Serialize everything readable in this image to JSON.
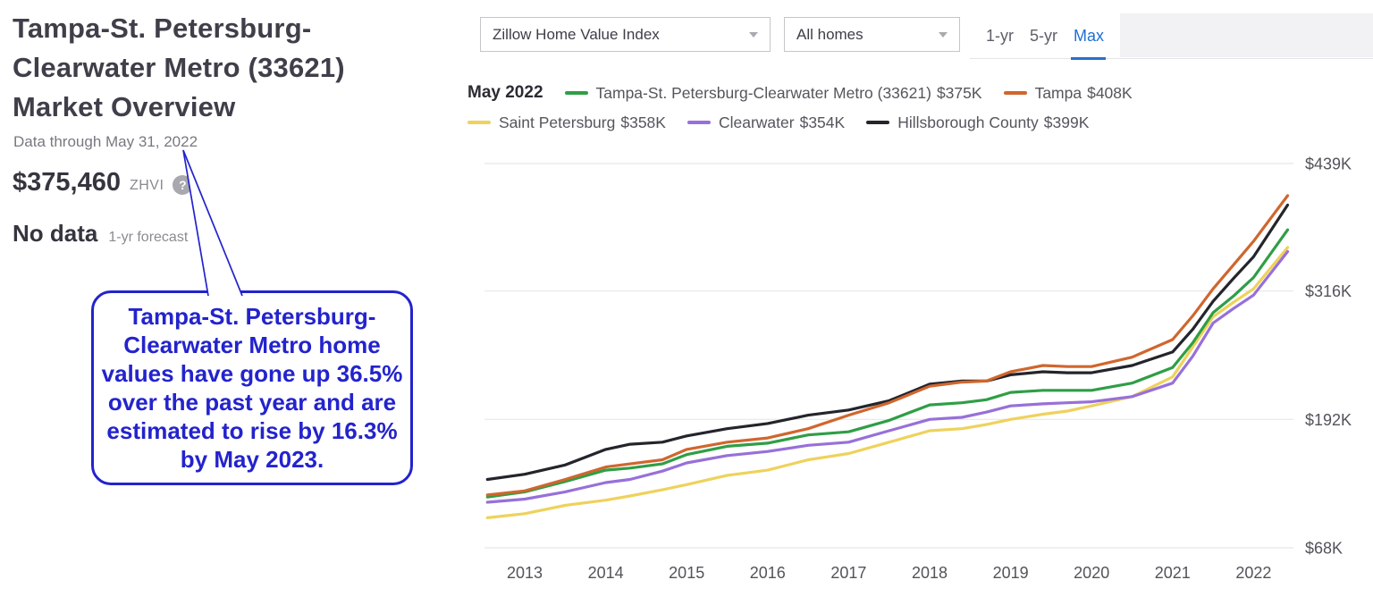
{
  "overview": {
    "title": "Tampa-St. Petersburg-Clearwater Metro (33621) Market Overview",
    "data_through": "Data through May 31, 2022",
    "zhvi_value": "$375,460",
    "zhvi_label": "ZHVI",
    "help_icon": "?",
    "forecast_value": "No data",
    "forecast_label": "1-yr forecast"
  },
  "annotation": {
    "text": "Tampa-St. Petersburg-Clearwater Metro home values have gone up 36.5% over the past year and are estimated to rise by 16.3% by May 2023.",
    "color": "#2323cd"
  },
  "controls": {
    "metric_dropdown_value": "Zillow Home Value Index",
    "segment_dropdown_value": "All homes",
    "tabs": [
      {
        "label": "1-yr",
        "active": false
      },
      {
        "label": "5-yr",
        "active": false
      },
      {
        "label": "Max",
        "active": true
      }
    ],
    "active_tab_color": "#1f6fd4"
  },
  "chart_data": {
    "type": "line",
    "title": "Zillow Home Value Index — All homes (Max range)",
    "as_of_label": "May 2022",
    "unit": "USD thousands",
    "ylim": [
      68,
      439
    ],
    "grid": true,
    "legend_position": "top",
    "y_ticks": [
      {
        "label": "$439K",
        "value": 439
      },
      {
        "label": "$316K",
        "value": 316
      },
      {
        "label": "$192K",
        "value": 192
      },
      {
        "label": "$68K",
        "value": 68
      }
    ],
    "x_tick_years": [
      2013,
      2014,
      2015,
      2016,
      2017,
      2018,
      2019,
      2020,
      2021,
      2022
    ],
    "x": [
      2012.54,
      2013.0,
      2013.5,
      2014.0,
      2014.3,
      2014.7,
      2015.0,
      2015.5,
      2016.0,
      2016.5,
      2017.0,
      2017.5,
      2018.0,
      2018.4,
      2018.7,
      2019.0,
      2019.4,
      2019.7,
      2020.0,
      2020.5,
      2021.0,
      2021.25,
      2021.5,
      2021.75,
      2022.0,
      2022.42
    ],
    "series": [
      {
        "name": "Tampa-St. Petersburg-Clearwater Metro (33621)",
        "latest": "$375K",
        "color": "#2f9e46",
        "values": [
          117,
          122,
          132,
          143,
          145,
          149,
          158,
          166,
          169,
          177,
          180,
          191,
          206,
          208,
          211,
          218,
          220,
          220,
          220,
          227,
          242,
          266,
          295,
          311,
          329,
          375
        ]
      },
      {
        "name": "Tampa",
        "latest": "$408K",
        "color": "#d0662e",
        "values": [
          119,
          123,
          134,
          146,
          149,
          153,
          163,
          170,
          174,
          183,
          196,
          208,
          224,
          228,
          229,
          238,
          244,
          243,
          243,
          252,
          269,
          292,
          318,
          341,
          364,
          408
        ]
      },
      {
        "name": "Saint Petersburg",
        "latest": "$358K",
        "color": "#eed25c",
        "values": [
          97,
          101,
          109,
          114,
          118,
          124,
          129,
          138,
          143,
          153,
          159,
          170,
          181,
          183,
          187,
          192,
          197,
          200,
          205,
          214,
          233,
          262,
          291,
          305,
          318,
          358
        ]
      },
      {
        "name": "Clearwater",
        "latest": "$354K",
        "color": "#9770d9",
        "values": [
          112,
          115,
          122,
          131,
          134,
          142,
          150,
          157,
          161,
          167,
          170,
          181,
          192,
          194,
          199,
          205,
          207,
          208,
          209,
          214,
          227,
          253,
          285,
          299,
          312,
          354
        ]
      },
      {
        "name": "Hillsborough County",
        "latest": "$399K",
        "color": "#24242c",
        "values": [
          134,
          139,
          148,
          163,
          168,
          170,
          176,
          183,
          188,
          196,
          201,
          210,
          226,
          229,
          229,
          235,
          238,
          237,
          237,
          244,
          257,
          279,
          306,
          328,
          349,
          399
        ]
      }
    ]
  }
}
